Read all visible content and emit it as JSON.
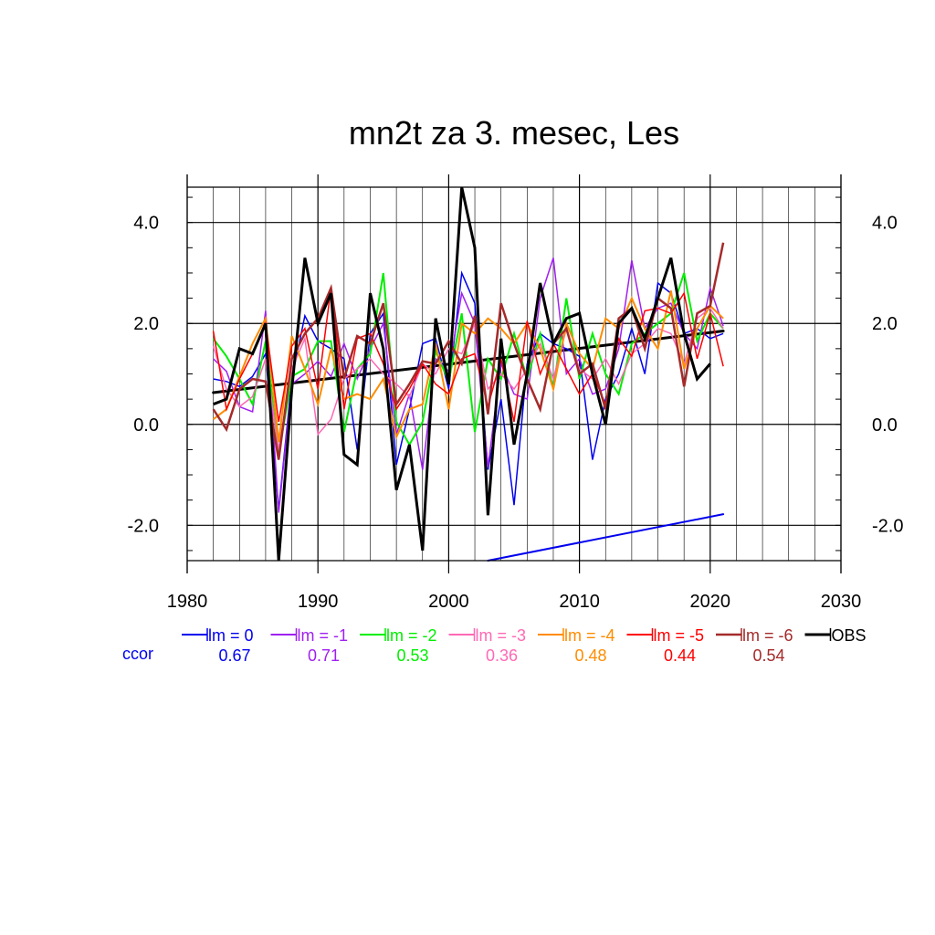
{
  "chart_data": {
    "type": "line",
    "title": "mn2t za 3. mesec, Les",
    "xlabel": "",
    "ylabel": "",
    "xlim": [
      1980,
      2030
    ],
    "ylim": [
      -2.7,
      4.7
    ],
    "x_ticks": [
      1980,
      1990,
      2000,
      2010,
      2020,
      2030
    ],
    "x_tick_labels": [
      "1980",
      "1990",
      "2000",
      "2010",
      "2020",
      "2030"
    ],
    "y_ticks": [
      -2.0,
      0.0,
      2.0,
      4.0
    ],
    "y_tick_labels": [
      "-2.0",
      "0.0",
      "2.0",
      "4.0"
    ],
    "grid": true,
    "legend_position": "bottom",
    "x": [
      1982,
      1983,
      1984,
      1985,
      1986,
      1987,
      1988,
      1989,
      1990,
      1991,
      1992,
      1993,
      1994,
      1995,
      1996,
      1997,
      1998,
      1999,
      2000,
      2001,
      2002,
      2003,
      2004,
      2005,
      2006,
      2007,
      2008,
      2009,
      2010,
      2011,
      2012,
      2013,
      2014,
      2015,
      2016,
      2017,
      2018,
      2019,
      2020,
      2021
    ],
    "series": [
      {
        "name": "lm = 0",
        "color": "#0000ee",
        "width": 1.5,
        "corr": "0.67",
        "values": [
          0.9,
          0.85,
          0.75,
          0.95,
          1.4,
          -1.7,
          0.9,
          2.15,
          1.65,
          1.5,
          1.3,
          -0.5,
          1.8,
          2.2,
          -0.8,
          0.3,
          1.6,
          1.7,
          0.7,
          3.0,
          2.4,
          -0.9,
          0.5,
          -1.6,
          1.2,
          1.8,
          1.6,
          1.5,
          1.35,
          -0.7,
          0.5,
          1.0,
          1.9,
          1.0,
          2.8,
          2.6,
          1.8,
          1.9,
          1.7,
          1.8
        ]
      },
      {
        "name": "lm = -1",
        "color": "#a020f0",
        "width": 1.5,
        "corr": "0.71",
        "values": [
          1.3,
          1.05,
          0.35,
          0.25,
          2.25,
          -1.75,
          0.8,
          1.0,
          1.25,
          0.95,
          1.6,
          0.9,
          1.5,
          2.0,
          -0.2,
          0.6,
          -0.9,
          1.3,
          1.05,
          2.6,
          2.0,
          -0.85,
          1.2,
          0.6,
          0.5,
          2.5,
          3.3,
          1.0,
          1.3,
          0.6,
          0.7,
          1.5,
          3.25,
          1.9,
          2.3,
          2.4,
          1.8,
          1.5,
          2.7,
          1.95
        ]
      },
      {
        "name": "lm = -2",
        "color": "#00ee00",
        "width": 2.0,
        "corr": "0.53",
        "values": [
          1.7,
          1.35,
          0.9,
          0.4,
          1.65,
          -0.6,
          0.95,
          1.1,
          1.65,
          1.65,
          -0.15,
          1.1,
          1.4,
          3.0,
          0.05,
          -0.4,
          0.05,
          1.45,
          0.85,
          2.2,
          -0.15,
          1.3,
          0.9,
          1.8,
          0.9,
          1.8,
          0.7,
          2.5,
          0.9,
          1.8,
          1.0,
          0.6,
          1.6,
          1.8,
          2.0,
          2.2,
          3.0,
          1.65,
          2.2,
          1.9
        ]
      },
      {
        "name": "lm = -3",
        "color": "#ff69b4",
        "width": 1.5,
        "corr": "0.36",
        "values": [
          1.55,
          0.7,
          0.35,
          0.55,
          1.3,
          -0.5,
          1.1,
          1.7,
          -0.2,
          0.1,
          0.9,
          1.1,
          1.3,
          1.0,
          0.8,
          0.55,
          1.2,
          1.0,
          1.5,
          1.4,
          2.0,
          0.7,
          1.0,
          0.7,
          1.1,
          1.6,
          0.9,
          1.9,
          1.1,
          0.9,
          1.3,
          0.8,
          1.4,
          1.6,
          1.9,
          1.8,
          1.2,
          2.1,
          2.3,
          1.9
        ]
      },
      {
        "name": "lm = -4",
        "color": "#ff8c00",
        "width": 2.0,
        "corr": "0.48",
        "values": [
          0.1,
          0.3,
          0.95,
          1.6,
          2.1,
          -0.35,
          1.75,
          1.1,
          0.4,
          1.5,
          0.5,
          0.6,
          0.5,
          0.9,
          -0.25,
          0.3,
          0.4,
          1.6,
          0.3,
          2.0,
          1.8,
          2.1,
          1.9,
          1.6,
          2.0,
          1.5,
          0.7,
          2.0,
          1.4,
          1.1,
          2.1,
          1.9,
          2.5,
          1.9,
          1.5,
          2.65,
          1.1,
          1.9,
          2.35,
          2.1
        ]
      },
      {
        "name": "lm = -5",
        "color": "#ff0000",
        "width": 1.5,
        "corr": "0.44",
        "values": [
          1.85,
          0.3,
          0.9,
          1.4,
          2.0,
          0.05,
          1.55,
          1.9,
          0.7,
          2.7,
          0.3,
          1.7,
          1.8,
          1.2,
          0.3,
          0.7,
          1.2,
          0.8,
          0.6,
          1.3,
          1.4,
          0.35,
          1.3,
          0.05,
          2.05,
          1.0,
          1.6,
          1.1,
          0.6,
          1.0,
          0.4,
          1.7,
          1.35,
          2.25,
          2.3,
          2.2,
          2.6,
          1.3,
          2.2,
          1.15
        ]
      },
      {
        "name": "lm = -6",
        "color": "#a52a2a",
        "width": 2.5,
        "corr": "0.54",
        "values": [
          0.3,
          -0.1,
          0.7,
          0.9,
          0.85,
          -0.7,
          1.3,
          1.8,
          2.1,
          2.7,
          0.9,
          1.75,
          1.6,
          2.4,
          0.4,
          0.8,
          1.25,
          1.2,
          1.65,
          1.2,
          2.15,
          0.2,
          2.4,
          1.6,
          0.9,
          0.3,
          1.6,
          1.9,
          1.0,
          1.2,
          0.3,
          2.1,
          2.3,
          1.5,
          2.5,
          2.3,
          0.75,
          2.2,
          2.35,
          3.6
        ]
      },
      {
        "name": "OBS",
        "color": "#000000",
        "width": 3.0,
        "corr": "",
        "values": [
          0.4,
          0.5,
          1.5,
          1.4,
          2.0,
          -2.7,
          0.7,
          3.3,
          2.0,
          2.6,
          -0.6,
          -0.8,
          2.6,
          1.5,
          -1.3,
          -0.4,
          -2.5,
          2.1,
          0.8,
          4.7,
          3.5,
          -1.8,
          1.7,
          -0.4,
          1.0,
          2.8,
          1.6,
          2.1,
          2.2,
          1.0,
          0.0,
          2.0,
          2.3,
          1.7,
          2.5,
          3.3,
          1.8,
          0.9,
          1.2,
          null
        ]
      }
    ],
    "trend_lines": [
      {
        "series": "OBS",
        "color": "#000000",
        "width": 3.0,
        "x": [
          1982,
          2021
        ],
        "y": [
          0.63,
          1.85
        ]
      },
      {
        "series": "lm = 0",
        "color": "#0000ee",
        "width": 2.0,
        "x": [
          2003,
          2021
        ],
        "y": [
          -2.7,
          -1.78
        ]
      }
    ],
    "ccor_label": "ccor",
    "ccor_color": "#0000ee"
  }
}
